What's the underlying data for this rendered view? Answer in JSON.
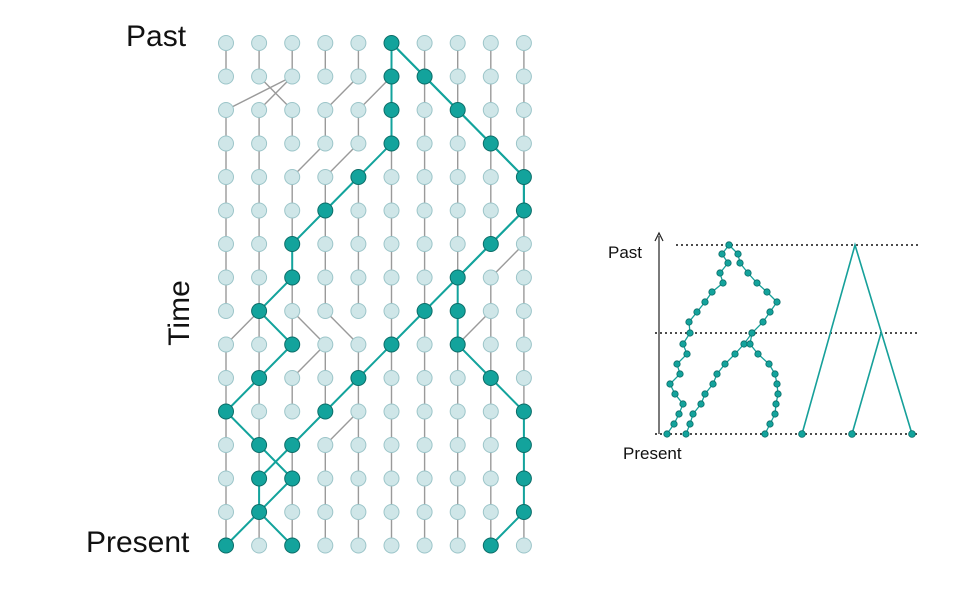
{
  "main_figure": {
    "past_label": "Past",
    "present_label": "Present",
    "time_label": "Time",
    "node_color": "#cfe6e8",
    "node_stroke": "#9cc5c9",
    "highlight_color": "#13a39c",
    "highlight_stroke": "#0b6d68",
    "edge_color": "#9a9a9a"
  },
  "inset_figure": {
    "past_label": "Past",
    "present_label": "Present",
    "line_color": "#16a09a",
    "node_color": "#13a39c"
  }
}
